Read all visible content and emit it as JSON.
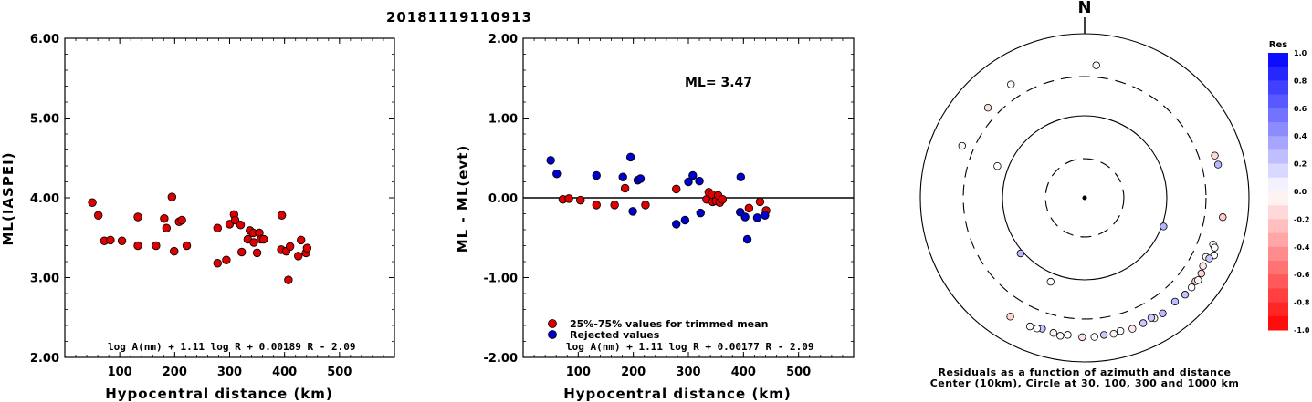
{
  "title": "20181119110913",
  "chart_data": [
    {
      "type": "scatter",
      "id": "ml-vs-distance",
      "xlabel": "Hypocentral distance (km)",
      "ylabel": "ML(IASPEI)",
      "xlim": [
        0,
        600
      ],
      "ylim": [
        2.0,
        6.0
      ],
      "xticks": [
        100,
        200,
        300,
        400,
        500
      ],
      "yticks": [
        "2.00",
        "3.00",
        "4.00",
        "5.00",
        "6.00"
      ],
      "formula": "log A(nm) + 1.11 log R + 0.00189 R - 2.09",
      "marker_color": "#dd0000",
      "points": [
        [
          50,
          3.94
        ],
        [
          61,
          3.78
        ],
        [
          72,
          3.46
        ],
        [
          83,
          3.47
        ],
        [
          104,
          3.46
        ],
        [
          133,
          3.76
        ],
        [
          133,
          3.4
        ],
        [
          166,
          3.4
        ],
        [
          181,
          3.74
        ],
        [
          185,
          3.62
        ],
        [
          195,
          4.01
        ],
        [
          199,
          3.33
        ],
        [
          208,
          3.7
        ],
        [
          213,
          3.72
        ],
        [
          222,
          3.4
        ],
        [
          278,
          3.62
        ],
        [
          278,
          3.18
        ],
        [
          294,
          3.22
        ],
        [
          300,
          3.67
        ],
        [
          308,
          3.79
        ],
        [
          310,
          3.72
        ],
        [
          320,
          3.66
        ],
        [
          322,
          3.32
        ],
        [
          333,
          3.48
        ],
        [
          337,
          3.59
        ],
        [
          343,
          3.56
        ],
        [
          344,
          3.44
        ],
        [
          350,
          3.31
        ],
        [
          354,
          3.56
        ],
        [
          357,
          3.48
        ],
        [
          362,
          3.48
        ],
        [
          395,
          3.78
        ],
        [
          394,
          3.35
        ],
        [
          403,
          3.33
        ],
        [
          407,
          2.97
        ],
        [
          410,
          3.39
        ],
        [
          425,
          3.27
        ],
        [
          430,
          3.47
        ],
        [
          439,
          3.31
        ],
        [
          441,
          3.37
        ]
      ]
    },
    {
      "type": "scatter",
      "id": "residual-vs-distance",
      "xlabel": "Hypocentral distance (km)",
      "ylabel": "ML - ML(evt)",
      "xlim": [
        0,
        600
      ],
      "ylim": [
        -2.0,
        2.0
      ],
      "xticks": [
        100,
        200,
        300,
        400,
        500
      ],
      "yticks": [
        "-2.00",
        "-1.00",
        "0.00",
        "1.00",
        "2.00"
      ],
      "annotation": "ML= 3.47",
      "formula": "log A(nm) + 1.11 log R + 0.00177 R - 2.09",
      "legend": [
        {
          "label": "25%-75% values for trimmed mean",
          "color": "#dd0000"
        },
        {
          "label": "Rejected values",
          "color": "#0000cc"
        }
      ],
      "series": [
        {
          "name": "25%-75% values for trimmed mean",
          "color": "#dd0000",
          "points": [
            [
              72,
              -0.02
            ],
            [
              83,
              -0.01
            ],
            [
              104,
              -0.03
            ],
            [
              133,
              -0.09
            ],
            [
              166,
              -0.09
            ],
            [
              185,
              0.12
            ],
            [
              222,
              -0.09
            ],
            [
              278,
              0.11
            ],
            [
              333,
              -0.02
            ],
            [
              337,
              0.07
            ],
            [
              343,
              0.04
            ],
            [
              344,
              -0.05
            ],
            [
              350,
              -0.04
            ],
            [
              354,
              0.03
            ],
            [
              357,
              -0.06
            ],
            [
              362,
              -0.02
            ],
            [
              410,
              -0.13
            ],
            [
              430,
              -0.05
            ],
            [
              441,
              -0.16
            ]
          ]
        },
        {
          "name": "Rejected values",
          "color": "#0000cc",
          "points": [
            [
              50,
              0.47
            ],
            [
              61,
              0.3
            ],
            [
              133,
              0.28
            ],
            [
              181,
              0.26
            ],
            [
              195,
              0.51
            ],
            [
              199,
              -0.17
            ],
            [
              208,
              0.22
            ],
            [
              213,
              0.24
            ],
            [
              278,
              -0.33
            ],
            [
              294,
              -0.28
            ],
            [
              300,
              0.2
            ],
            [
              308,
              0.28
            ],
            [
              320,
              0.21
            ],
            [
              322,
              -0.19
            ],
            [
              394,
              -0.18
            ],
            [
              395,
              0.26
            ],
            [
              403,
              -0.24
            ],
            [
              407,
              -0.52
            ],
            [
              425,
              -0.25
            ],
            [
              439,
              -0.22
            ]
          ]
        }
      ]
    },
    {
      "type": "polar",
      "id": "azimuth-residuals",
      "north_label": "N",
      "caption_line1": "Residuals as a function of azimuth and distance",
      "caption_line2": "Center (10km), Circle at 30, 100, 300 and 1000 km",
      "rings_km": [
        10,
        30,
        100,
        300,
        1000
      ],
      "colorbar_title": "Res",
      "colorbar_ticks": [
        "1.0",
        "0.8",
        "0.6",
        "0.4",
        "0.2",
        "0.0",
        "-0.2",
        "-0.4",
        "-0.6",
        "-0.8",
        "-1.0"
      ],
      "points": [
        {
          "az": 313,
          "dist": 407,
          "res": -0.13
        },
        {
          "az": 327,
          "dist": 444,
          "res": -0.02
        },
        {
          "az": 5,
          "dist": 418,
          "res": -0.02
        },
        {
          "az": 293,
          "dist": 417,
          "res": -0.04
        },
        {
          "az": 290,
          "dist": 135,
          "res": 0.0
        },
        {
          "az": 202,
          "dist": 127,
          "res": 0.0
        },
        {
          "az": 229,
          "dist": 108,
          "res": 0.28
        },
        {
          "az": 110,
          "dist": 105,
          "res": 0.3
        },
        {
          "az": 72,
          "dist": 463,
          "res": -0.16
        },
        {
          "az": 76,
          "dist": 471,
          "res": 0.28
        },
        {
          "az": 98,
          "dist": 498,
          "res": -0.2
        },
        {
          "az": 110,
          "dist": 460,
          "res": -0.06
        },
        {
          "az": 116,
          "dist": 440,
          "res": -0.02
        },
        {
          "az": 111,
          "dist": 495,
          "res": 0.0
        },
        {
          "az": 114,
          "dist": 530,
          "res": 0.0
        },
        {
          "az": 116,
          "dist": 487,
          "res": 0.22
        },
        {
          "az": 120,
          "dist": 460,
          "res": -0.09
        },
        {
          "az": 123,
          "dist": 493,
          "res": -0.18
        },
        {
          "az": 127,
          "dist": 490,
          "res": -0.21
        },
        {
          "az": 134,
          "dist": 500,
          "res": 0.24
        },
        {
          "az": 139,
          "dist": 475,
          "res": 0.26
        },
        {
          "az": 146,
          "dist": 500,
          "res": 0.28
        },
        {
          "az": 150,
          "dist": 495,
          "res": -0.05
        },
        {
          "az": 151,
          "dist": 470,
          "res": 0.2
        },
        {
          "az": 155,
          "dist": 485,
          "res": 0.2
        },
        {
          "az": 160,
          "dist": 500,
          "res": -0.09
        },
        {
          "az": 165,
          "dist": 480,
          "res": 0.0
        },
        {
          "az": 168,
          "dist": 495,
          "res": -0.05
        },
        {
          "az": 172,
          "dist": 487,
          "res": 0.21
        },
        {
          "az": 176,
          "dist": 500,
          "res": 0.0
        },
        {
          "az": 181,
          "dist": 500,
          "res": -0.12
        },
        {
          "az": 187,
          "dist": 482,
          "res": 0.0
        },
        {
          "az": 190,
          "dist": 510,
          "res": 0.0
        },
        {
          "az": 193,
          "dist": 490,
          "res": -0.03
        },
        {
          "az": 198,
          "dist": 475,
          "res": 0.22
        },
        {
          "az": 200,
          "dist": 495,
          "res": 0.0
        },
        {
          "az": 203,
          "dist": 505,
          "res": -0.02
        },
        {
          "az": 212,
          "dist": 510,
          "res": -0.16
        },
        {
          "az": 126,
          "dist": 510,
          "res": -0.02
        },
        {
          "az": 130,
          "dist": 500,
          "res": 0.0
        }
      ]
    }
  ]
}
